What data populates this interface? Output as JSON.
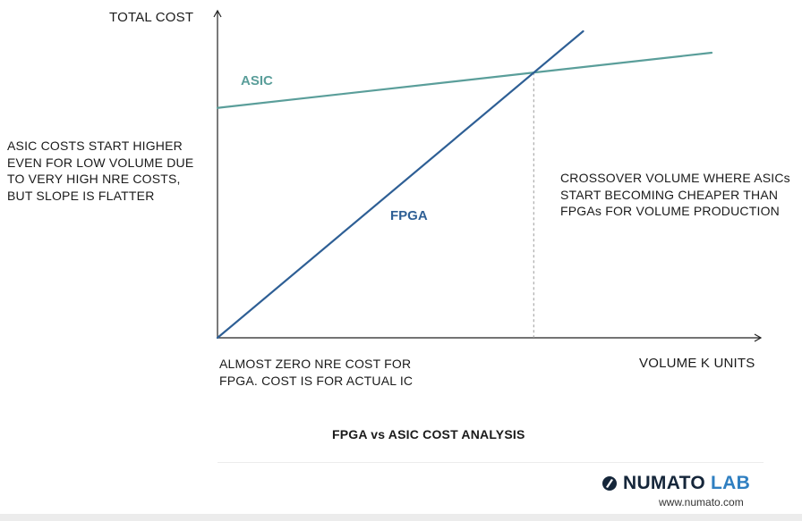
{
  "chart_data": {
    "type": "line",
    "title": "",
    "xlabel": "VOLUME K UNITS",
    "ylabel": "TOTAL COST",
    "x": [
      0,
      100
    ],
    "xlim": [
      0,
      100
    ],
    "ylim": [
      0,
      100
    ],
    "series": [
      {
        "name": "ASIC",
        "color": "#5a9e9a",
        "x": [
          0,
          100
        ],
        "y": [
          75,
          93
        ]
      },
      {
        "name": "FPGA",
        "color": "#2e5f95",
        "x": [
          0,
          74
        ],
        "y": [
          0,
          100
        ]
      }
    ],
    "crossover_x": 64,
    "grid": false,
    "legend": "inline labels"
  },
  "annotations": {
    "asic_note": [
      "ASIC COSTS START HIGHER",
      "EVEN FOR LOW VOLUME DUE",
      "TO VERY HIGH NRE COSTS,",
      "BUT SLOPE IS FLATTER"
    ],
    "crossover_note": [
      "CROSSOVER VOLUME WHERE ASICs",
      "START BECOMING CHEAPER THAN",
      "FPGAs FOR VOLUME PRODUCTION"
    ],
    "fpga_note": [
      "ALMOST ZERO NRE COST FOR",
      "FPGA. COST IS FOR ACTUAL IC"
    ]
  },
  "caption": "FPGA vs ASIC COST ANALYSIS",
  "brand": {
    "word1": "NUMATO",
    "word2": "LAB",
    "url": "www.numato.com",
    "dark": "#15263a",
    "accent": "#2f7fc1"
  }
}
